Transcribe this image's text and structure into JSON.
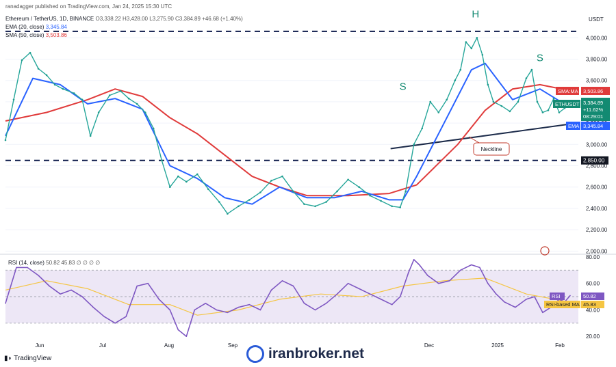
{
  "header": {
    "publisher": "ranadagger published on TradingView.com, Jan 24, 2025 15:30 UTC",
    "symbol": "Ethereum / TetherUS, 1D, BINANCE",
    "ohlc": "O3,338.22 H3,428.00 L3,275.90 C3,384.89 +46.68 (+1.40%)",
    "ema": "EMA (20, close)",
    "ema_value": "3,345.84",
    "sma": "SMA (50, close)",
    "sma_value": "3,503.86",
    "rsi": "RSI (14, close)",
    "rsi_values": "50.82  45.83  ∅ ∅ ∅ ∅"
  },
  "footer": {
    "brand": "TradingView",
    "watermark": "iranbroker.net"
  },
  "chart_data": {
    "type": "line",
    "title": "Ethereum / TetherUS, 1D, BINANCE",
    "currency": "USDT",
    "price_ticks": [
      2000,
      2200,
      2400,
      2600,
      2800,
      3000,
      3200,
      3400,
      3600,
      3800,
      4000
    ],
    "price_tick_labels": [
      "2,000.00",
      "2,200.00",
      "2,400.00",
      "2,600.00",
      "2,800.00",
      "3,000.00",
      "3,200.00",
      "3,400.00",
      "3,600.00",
      "3,800.00",
      "4,000.00"
    ],
    "ylim": [
      1970,
      4130
    ],
    "x_labels": [
      "Jun",
      "Jul",
      "Aug",
      "Sep",
      "Dec",
      "2025",
      "Feb"
    ],
    "price": [
      [
        0,
        3040
      ],
      [
        6,
        3420
      ],
      [
        12,
        3790
      ],
      [
        18,
        3860
      ],
      [
        24,
        3710
      ],
      [
        30,
        3650
      ],
      [
        36,
        3560
      ],
      [
        42,
        3520
      ],
      [
        50,
        3480
      ],
      [
        56,
        3420
      ],
      [
        62,
        3080
      ],
      [
        68,
        3300
      ],
      [
        76,
        3460
      ],
      [
        84,
        3500
      ],
      [
        90,
        3430
      ],
      [
        96,
        3380
      ],
      [
        102,
        3300
      ],
      [
        108,
        3150
      ],
      [
        114,
        2850
      ],
      [
        120,
        2600
      ],
      [
        126,
        2700
      ],
      [
        132,
        2650
      ],
      [
        140,
        2720
      ],
      [
        148,
        2580
      ],
      [
        156,
        2460
      ],
      [
        162,
        2350
      ],
      [
        170,
        2420
      ],
      [
        178,
        2480
      ],
      [
        186,
        2550
      ],
      [
        194,
        2660
      ],
      [
        202,
        2700
      ],
      [
        210,
        2560
      ],
      [
        218,
        2440
      ],
      [
        226,
        2420
      ],
      [
        234,
        2460
      ],
      [
        242,
        2560
      ],
      [
        250,
        2670
      ],
      [
        258,
        2600
      ],
      [
        266,
        2520
      ],
      [
        274,
        2470
      ],
      [
        282,
        2420
      ],
      [
        288,
        2410
      ],
      [
        292,
        2560
      ],
      [
        298,
        3000
      ],
      [
        304,
        3150
      ],
      [
        310,
        3400
      ],
      [
        316,
        3300
      ],
      [
        322,
        3420
      ],
      [
        328,
        3600
      ],
      [
        332,
        3700
      ],
      [
        336,
        3960
      ],
      [
        340,
        3900
      ],
      [
        344,
        4000
      ],
      [
        348,
        3840
      ],
      [
        352,
        3560
      ],
      [
        356,
        3400
      ],
      [
        362,
        3360
      ],
      [
        368,
        3310
      ],
      [
        374,
        3400
      ],
      [
        380,
        3620
      ],
      [
        384,
        3700
      ],
      [
        388,
        3400
      ],
      [
        392,
        3300
      ],
      [
        396,
        3320
      ],
      [
        400,
        3430
      ],
      [
        404,
        3300
      ],
      [
        408,
        3340
      ],
      [
        412,
        3384.89
      ]
    ],
    "ema20": [
      [
        0,
        3080
      ],
      [
        20,
        3620
      ],
      [
        40,
        3560
      ],
      [
        60,
        3380
      ],
      [
        80,
        3430
      ],
      [
        100,
        3330
      ],
      [
        120,
        2800
      ],
      [
        140,
        2680
      ],
      [
        160,
        2500
      ],
      [
        180,
        2440
      ],
      [
        200,
        2600
      ],
      [
        220,
        2500
      ],
      [
        240,
        2500
      ],
      [
        260,
        2560
      ],
      [
        280,
        2480
      ],
      [
        290,
        2480
      ],
      [
        300,
        2700
      ],
      [
        320,
        3200
      ],
      [
        340,
        3700
      ],
      [
        350,
        3760
      ],
      [
        370,
        3420
      ],
      [
        390,
        3520
      ],
      [
        412,
        3345.84
      ]
    ],
    "sma50": [
      [
        0,
        3220
      ],
      [
        30,
        3300
      ],
      [
        60,
        3420
      ],
      [
        80,
        3520
      ],
      [
        100,
        3450
      ],
      [
        120,
        3250
      ],
      [
        140,
        3100
      ],
      [
        160,
        2900
      ],
      [
        180,
        2700
      ],
      [
        200,
        2600
      ],
      [
        220,
        2520
      ],
      [
        250,
        2520
      ],
      [
        280,
        2540
      ],
      [
        300,
        2620
      ],
      [
        330,
        3000
      ],
      [
        350,
        3320
      ],
      [
        370,
        3520
      ],
      [
        390,
        3560
      ],
      [
        412,
        3503.86
      ]
    ],
    "resistance": 4060,
    "support": 2850,
    "support_label": "2,850.00",
    "neckline": [
      [
        281,
        2960
      ],
      [
        417,
        3200
      ]
    ],
    "neckline_label": "Neckline",
    "pattern_labels": [
      {
        "text": "S",
        "x": 290,
        "y": 3510
      },
      {
        "text": "H",
        "x": 343,
        "y": 4190
      },
      {
        "text": "S",
        "x": 390,
        "y": 3780
      }
    ],
    "price_tags": {
      "ethusdt": "ETHUSDT",
      "close": "3,384.89",
      "change": "+11.62%",
      "countdown": "08:29:01",
      "ema": "EMA",
      "ema_val": "3,345.84",
      "sma": "SMA:MA",
      "sma_val": "3,503.86"
    },
    "rsi": {
      "ticks": [
        20,
        40,
        60,
        80
      ],
      "tick_labels": [
        "20.00",
        "40.00",
        "60.00",
        "80.00"
      ],
      "ylim": [
        16,
        82
      ],
      "overbought": 70,
      "oversold": 30,
      "values": [
        [
          0,
          45
        ],
        [
          8,
          72
        ],
        [
          16,
          72
        ],
        [
          24,
          66
        ],
        [
          32,
          58
        ],
        [
          40,
          52
        ],
        [
          48,
          55
        ],
        [
          56,
          50
        ],
        [
          64,
          42
        ],
        [
          72,
          35
        ],
        [
          80,
          30
        ],
        [
          88,
          35
        ],
        [
          96,
          58
        ],
        [
          104,
          60
        ],
        [
          112,
          48
        ],
        [
          120,
          40
        ],
        [
          126,
          25
        ],
        [
          132,
          20
        ],
        [
          138,
          40
        ],
        [
          146,
          45
        ],
        [
          154,
          40
        ],
        [
          162,
          38
        ],
        [
          170,
          42
        ],
        [
          178,
          44
        ],
        [
          186,
          40
        ],
        [
          194,
          55
        ],
        [
          202,
          62
        ],
        [
          210,
          58
        ],
        [
          218,
          45
        ],
        [
          226,
          40
        ],
        [
          234,
          45
        ],
        [
          242,
          52
        ],
        [
          250,
          60
        ],
        [
          258,
          56
        ],
        [
          266,
          52
        ],
        [
          274,
          48
        ],
        [
          282,
          44
        ],
        [
          288,
          50
        ],
        [
          294,
          68
        ],
        [
          298,
          78
        ],
        [
          302,
          74
        ],
        [
          308,
          66
        ],
        [
          316,
          60
        ],
        [
          324,
          62
        ],
        [
          332,
          70
        ],
        [
          340,
          74
        ],
        [
          346,
          72
        ],
        [
          352,
          60
        ],
        [
          358,
          52
        ],
        [
          364,
          46
        ],
        [
          372,
          42
        ],
        [
          380,
          48
        ],
        [
          386,
          50
        ],
        [
          392,
          38
        ],
        [
          398,
          42
        ],
        [
          404,
          48
        ],
        [
          408,
          46
        ],
        [
          412,
          50.82
        ]
      ],
      "ma": [
        [
          0,
          55
        ],
        [
          30,
          62
        ],
        [
          60,
          56
        ],
        [
          90,
          44
        ],
        [
          120,
          44
        ],
        [
          140,
          36
        ],
        [
          170,
          40
        ],
        [
          200,
          48
        ],
        [
          230,
          52
        ],
        [
          260,
          50
        ],
        [
          290,
          58
        ],
        [
          320,
          62
        ],
        [
          350,
          64
        ],
        [
          380,
          52
        ],
        [
          412,
          45.83
        ]
      ],
      "rsi_tag": "RSI",
      "rsi_val": "50.82",
      "ma_tag": "RSI-based MA",
      "ma_val": "45.83"
    }
  }
}
